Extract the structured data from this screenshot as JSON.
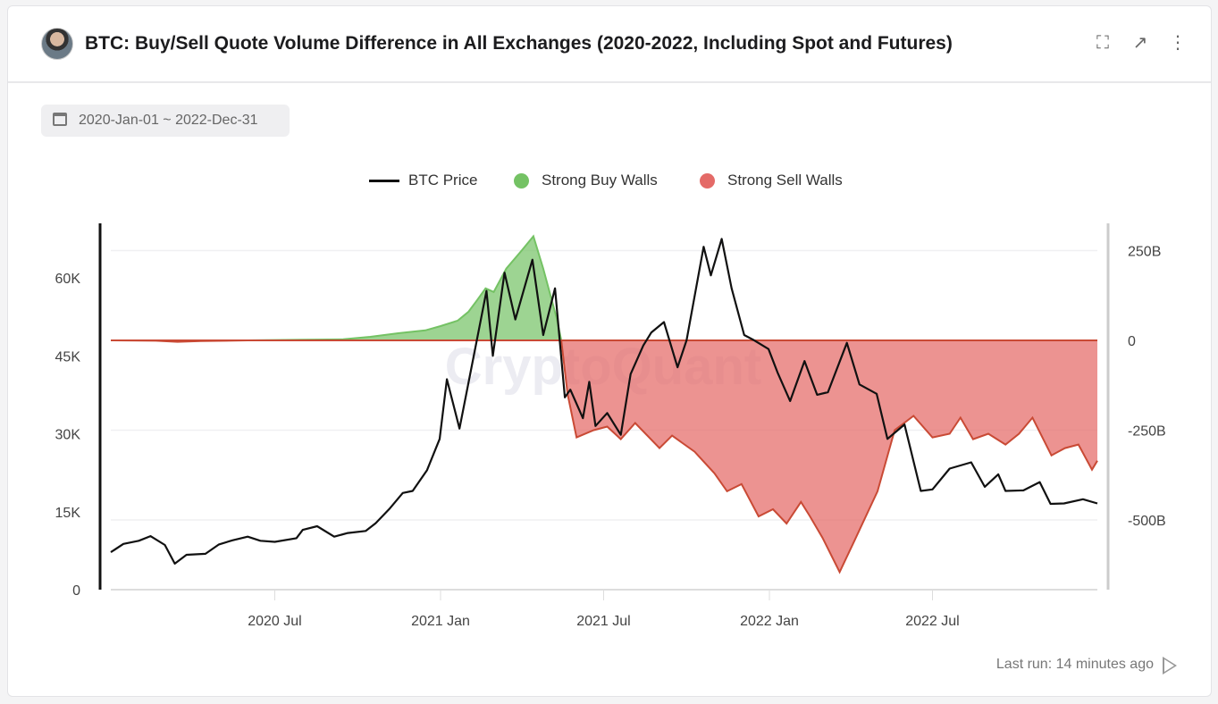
{
  "header": {
    "title": "BTC: Buy/Sell Quote Volume Difference in All Exchanges (2020-2022, Including Spot and Futures)",
    "icons": [
      "fullscreen-icon",
      "open-external-icon",
      "more-vertical-icon"
    ]
  },
  "date_range": "2020-Jan-01 ~ 2022-Dec-31",
  "footer": {
    "last_run": "Last run: 14 minutes ago"
  },
  "watermark": "CryptoQuant",
  "colors": {
    "price": "#111111",
    "buy": "#74c264",
    "sell": "#e46a67",
    "sell_line": "#c94a35"
  },
  "chart_data": {
    "type": "line+area",
    "legend": [
      "BTC Price",
      "Strong Buy Walls",
      "Strong Sell Walls"
    ],
    "legend_position": "top",
    "x_range": [
      "2020-01-01",
      "2022-12-31"
    ],
    "x_ticks": [
      "2020 Jul",
      "2021 Jan",
      "2021 Jul",
      "2022 Jan",
      "2022 Jul"
    ],
    "x_tick_dates": [
      "2020-07-01",
      "2021-01-01",
      "2021-07-01",
      "2022-01-01",
      "2022-07-01"
    ],
    "y_left": {
      "ticks": [
        "0",
        "15K",
        "30K",
        "45K",
        "60K"
      ],
      "tick_values": [
        0,
        15000,
        30000,
        45000,
        60000
      ],
      "range": [
        0,
        70500
      ]
    },
    "y_right": {
      "ticks": [
        "250B",
        "0",
        "-250B",
        "-500B"
      ],
      "tick_values": [
        250,
        0,
        -250,
        -500
      ],
      "range": [
        -694,
        326
      ],
      "unit": "B"
    },
    "grid": true,
    "price": [
      [
        "2020-01-01",
        7200
      ],
      [
        "2020-01-15",
        8800
      ],
      [
        "2020-02-01",
        9400
      ],
      [
        "2020-02-14",
        10300
      ],
      [
        "2020-03-01",
        8600
      ],
      [
        "2020-03-12",
        5000
      ],
      [
        "2020-03-25",
        6700
      ],
      [
        "2020-04-15",
        6900
      ],
      [
        "2020-04-30",
        8700
      ],
      [
        "2020-05-15",
        9500
      ],
      [
        "2020-06-01",
        10200
      ],
      [
        "2020-06-15",
        9400
      ],
      [
        "2020-07-01",
        9200
      ],
      [
        "2020-07-25",
        9900
      ],
      [
        "2020-08-01",
        11500
      ],
      [
        "2020-08-17",
        12200
      ],
      [
        "2020-09-05",
        10200
      ],
      [
        "2020-09-20",
        10900
      ],
      [
        "2020-10-10",
        11300
      ],
      [
        "2020-10-21",
        12800
      ],
      [
        "2020-11-05",
        15500
      ],
      [
        "2020-11-20",
        18600
      ],
      [
        "2020-12-01",
        19000
      ],
      [
        "2020-12-17",
        23000
      ],
      [
        "2020-12-31",
        29000
      ],
      [
        "2021-01-08",
        40500
      ],
      [
        "2021-01-22",
        31000
      ],
      [
        "2021-02-08",
        46000
      ],
      [
        "2021-02-21",
        57500
      ],
      [
        "2021-02-28",
        45000
      ],
      [
        "2021-03-13",
        61000
      ],
      [
        "2021-03-25",
        52000
      ],
      [
        "2021-04-13",
        63500
      ],
      [
        "2021-04-25",
        49000
      ],
      [
        "2021-05-08",
        58000
      ],
      [
        "2021-05-19",
        37000
      ],
      [
        "2021-05-25",
        38500
      ],
      [
        "2021-06-08",
        33000
      ],
      [
        "2021-06-15",
        40000
      ],
      [
        "2021-06-22",
        31500
      ],
      [
        "2021-07-05",
        34000
      ],
      [
        "2021-07-20",
        29800
      ],
      [
        "2021-07-31",
        41500
      ],
      [
        "2021-08-14",
        47000
      ],
      [
        "2021-08-23",
        49500
      ],
      [
        "2021-09-06",
        51500
      ],
      [
        "2021-09-21",
        42800
      ],
      [
        "2021-10-01",
        48000
      ],
      [
        "2021-10-20",
        66000
      ],
      [
        "2021-10-28",
        60500
      ],
      [
        "2021-11-09",
        67500
      ],
      [
        "2021-11-20",
        58000
      ],
      [
        "2021-12-04",
        49000
      ],
      [
        "2021-12-15",
        48000
      ],
      [
        "2021-12-31",
        46300
      ],
      [
        "2022-01-10",
        41800
      ],
      [
        "2022-01-24",
        36300
      ],
      [
        "2022-02-09",
        44000
      ],
      [
        "2022-02-23",
        37500
      ],
      [
        "2022-03-07",
        38000
      ],
      [
        "2022-03-28",
        47500
      ],
      [
        "2022-04-11",
        39500
      ],
      [
        "2022-04-30",
        37700
      ],
      [
        "2022-05-12",
        29000
      ],
      [
        "2022-05-31",
        31800
      ],
      [
        "2022-06-18",
        19000
      ],
      [
        "2022-07-01",
        19300
      ],
      [
        "2022-07-20",
        23300
      ],
      [
        "2022-08-13",
        24500
      ],
      [
        "2022-08-28",
        19800
      ],
      [
        "2022-09-12",
        22200
      ],
      [
        "2022-09-20",
        19000
      ],
      [
        "2022-10-10",
        19100
      ],
      [
        "2022-10-28",
        20700
      ],
      [
        "2022-11-09",
        16500
      ],
      [
        "2022-11-24",
        16600
      ],
      [
        "2022-12-15",
        17400
      ],
      [
        "2022-12-31",
        16600
      ]
    ],
    "volume_difference": [
      [
        "2020-01-01",
        0
      ],
      [
        "2020-02-20",
        -1
      ],
      [
        "2020-03-15",
        -4
      ],
      [
        "2020-04-10",
        -2
      ],
      [
        "2020-06-01",
        0
      ],
      [
        "2020-08-01",
        2
      ],
      [
        "2020-09-15",
        3
      ],
      [
        "2020-10-15",
        10
      ],
      [
        "2020-11-15",
        20
      ],
      [
        "2020-12-15",
        28
      ],
      [
        "2021-01-01",
        40
      ],
      [
        "2021-01-20",
        55
      ],
      [
        "2021-02-01",
        80
      ],
      [
        "2021-02-10",
        110
      ],
      [
        "2021-02-20",
        145
      ],
      [
        "2021-03-01",
        135
      ],
      [
        "2021-03-15",
        200
      ],
      [
        "2021-04-01",
        250
      ],
      [
        "2021-04-14",
        290
      ],
      [
        "2021-04-25",
        200
      ],
      [
        "2021-05-10",
        60
      ],
      [
        "2021-05-15",
        0
      ],
      [
        "2021-05-22",
        -150
      ],
      [
        "2021-06-01",
        -270
      ],
      [
        "2021-06-20",
        -250
      ],
      [
        "2021-07-05",
        -240
      ],
      [
        "2021-07-20",
        -275
      ],
      [
        "2021-08-05",
        -230
      ],
      [
        "2021-09-01",
        -300
      ],
      [
        "2021-09-15",
        -265
      ],
      [
        "2021-10-10",
        -310
      ],
      [
        "2021-11-01",
        -370
      ],
      [
        "2021-11-15",
        -420
      ],
      [
        "2021-12-01",
        -400
      ],
      [
        "2021-12-20",
        -490
      ],
      [
        "2022-01-05",
        -470
      ],
      [
        "2022-01-20",
        -510
      ],
      [
        "2022-02-05",
        -450
      ],
      [
        "2022-02-15",
        -490
      ],
      [
        "2022-03-01",
        -550
      ],
      [
        "2022-03-20",
        -645
      ],
      [
        "2022-04-05",
        -560
      ],
      [
        "2022-05-01",
        -420
      ],
      [
        "2022-05-20",
        -250
      ],
      [
        "2022-06-10",
        -210
      ],
      [
        "2022-07-01",
        -270
      ],
      [
        "2022-07-20",
        -260
      ],
      [
        "2022-08-01",
        -215
      ],
      [
        "2022-08-15",
        -275
      ],
      [
        "2022-09-01",
        -260
      ],
      [
        "2022-09-20",
        -290
      ],
      [
        "2022-10-05",
        -260
      ],
      [
        "2022-10-20",
        -215
      ],
      [
        "2022-11-10",
        -320
      ],
      [
        "2022-11-25",
        -300
      ],
      [
        "2022-12-10",
        -290
      ],
      [
        "2022-12-25",
        -360
      ],
      [
        "2022-12-31",
        -335
      ]
    ]
  }
}
